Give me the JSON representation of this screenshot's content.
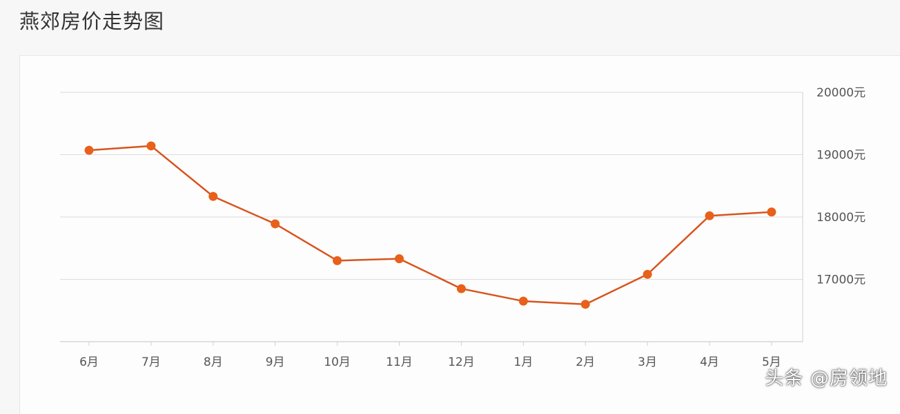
{
  "page": {
    "title": "燕郊房价走势图",
    "watermark": "头条 @房领地"
  },
  "colors": {
    "line": "#d9531e",
    "point": "#e8601a",
    "grid": "#dcdcdc",
    "axis": "#cfcfcf"
  },
  "chart_data": {
    "type": "line",
    "title": "燕郊房价走势图",
    "xlabel": "",
    "ylabel": "",
    "categories": [
      "6月",
      "7月",
      "8月",
      "9月",
      "10月",
      "11月",
      "12月",
      "1月",
      "2月",
      "3月",
      "4月",
      "5月"
    ],
    "series": [
      {
        "values": [
          19070,
          19140,
          18330,
          17890,
          17300,
          17330,
          16850,
          16650,
          16600,
          17080,
          18020,
          18080
        ]
      }
    ],
    "ylim": [
      16000,
      20000
    ],
    "yticks": [
      17000,
      18000,
      19000,
      20000
    ],
    "ytick_labels": [
      "17000元",
      "18000元",
      "19000元",
      "20000元"
    ],
    "y_axis_side": "right",
    "grid": true
  }
}
